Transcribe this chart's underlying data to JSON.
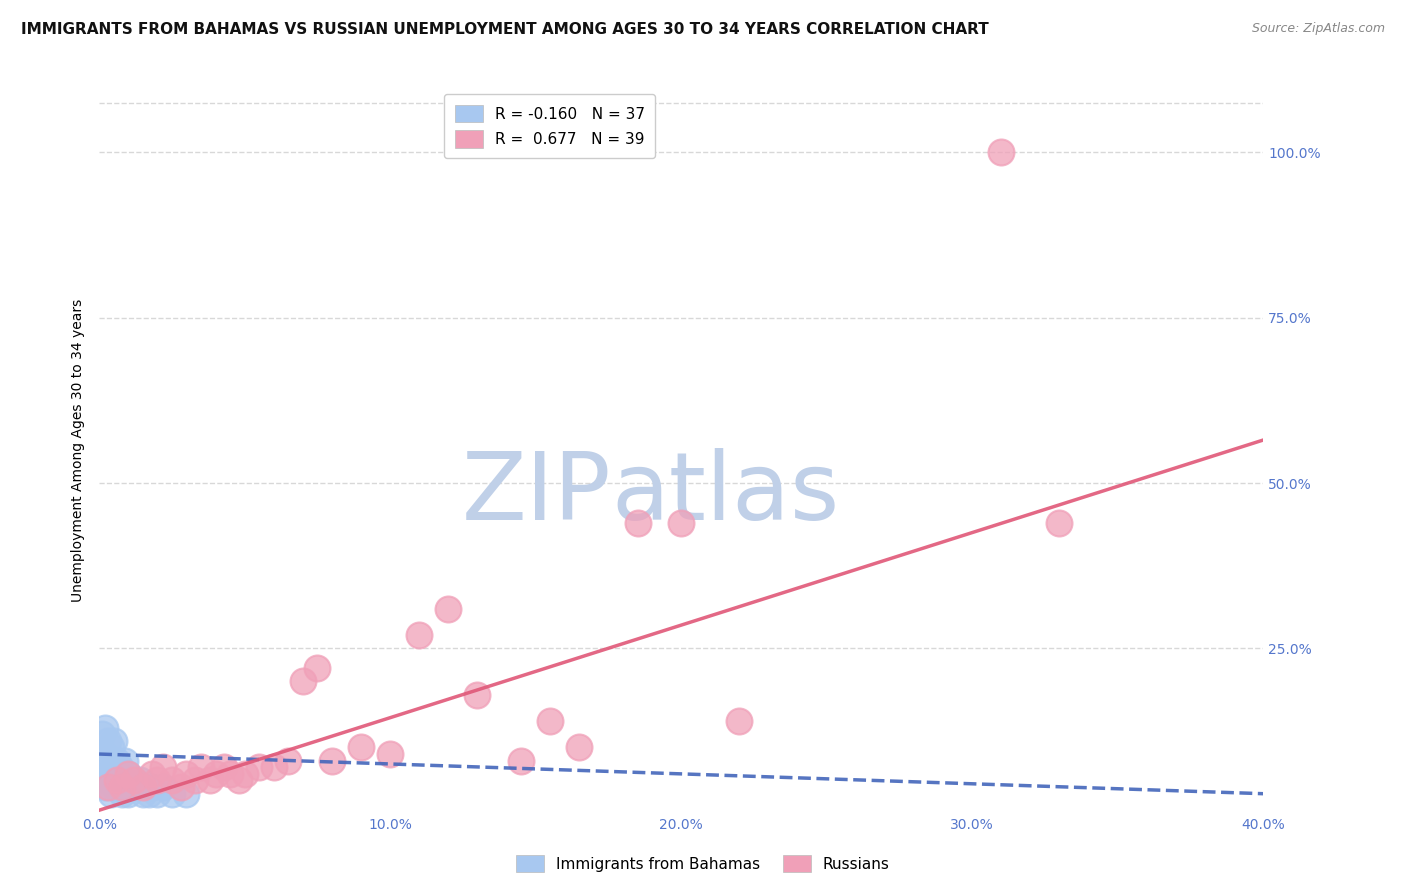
{
  "title": "IMMIGRANTS FROM BAHAMAS VS RUSSIAN UNEMPLOYMENT AMONG AGES 30 TO 34 YEARS CORRELATION CHART",
  "source": "Source: ZipAtlas.com",
  "ylabel": "Unemployment Among Ages 30 to 34 years",
  "xlim": [
    0.0,
    0.4
  ],
  "ylim": [
    0.0,
    1.1
  ],
  "xticks": [
    0.0,
    0.1,
    0.2,
    0.3,
    0.4
  ],
  "xticklabels": [
    "0.0%",
    "10.0%",
    "20.0%",
    "30.0%",
    "40.0%"
  ],
  "yticks_right": [
    0.25,
    0.5,
    0.75,
    1.0
  ],
  "yticklabels_right": [
    "25.0%",
    "50.0%",
    "75.0%",
    "100.0%"
  ],
  "grid_color": "#d8d8d8",
  "background_color": "#ffffff",
  "legend_label_blue": "Immigrants from Bahamas",
  "legend_label_pink": "Russians",
  "blue_R": -0.16,
  "blue_N": 37,
  "pink_R": 0.677,
  "pink_N": 39,
  "blue_color": "#a8c8f0",
  "pink_color": "#f0a0b8",
  "blue_line_color": "#4466bb",
  "pink_line_color": "#e05878",
  "blue_scatter_x": [
    0.001,
    0.001,
    0.001,
    0.002,
    0.002,
    0.002,
    0.003,
    0.003,
    0.003,
    0.004,
    0.004,
    0.004,
    0.005,
    0.005,
    0.005,
    0.006,
    0.006,
    0.007,
    0.007,
    0.008,
    0.008,
    0.009,
    0.009,
    0.01,
    0.01,
    0.011,
    0.012,
    0.013,
    0.014,
    0.015,
    0.016,
    0.017,
    0.018,
    0.02,
    0.022,
    0.025,
    0.03
  ],
  "blue_scatter_y": [
    0.05,
    0.08,
    0.12,
    0.04,
    0.09,
    0.13,
    0.05,
    0.07,
    0.11,
    0.03,
    0.06,
    0.1,
    0.04,
    0.07,
    0.11,
    0.05,
    0.08,
    0.04,
    0.07,
    0.03,
    0.06,
    0.04,
    0.08,
    0.03,
    0.06,
    0.04,
    0.05,
    0.04,
    0.05,
    0.03,
    0.04,
    0.03,
    0.04,
    0.03,
    0.04,
    0.03,
    0.03
  ],
  "pink_scatter_x": [
    0.003,
    0.006,
    0.008,
    0.01,
    0.012,
    0.015,
    0.018,
    0.02,
    0.022,
    0.025,
    0.028,
    0.03,
    0.033,
    0.035,
    0.038,
    0.04,
    0.043,
    0.045,
    0.048,
    0.05,
    0.055,
    0.06,
    0.065,
    0.07,
    0.075,
    0.08,
    0.09,
    0.1,
    0.11,
    0.12,
    0.13,
    0.145,
    0.155,
    0.165,
    0.185,
    0.2,
    0.22,
    0.31,
    0.33
  ],
  "pink_scatter_y": [
    0.04,
    0.05,
    0.04,
    0.06,
    0.05,
    0.04,
    0.06,
    0.05,
    0.07,
    0.05,
    0.04,
    0.06,
    0.05,
    0.07,
    0.05,
    0.06,
    0.07,
    0.06,
    0.05,
    0.06,
    0.07,
    0.07,
    0.08,
    0.2,
    0.22,
    0.08,
    0.1,
    0.09,
    0.27,
    0.31,
    0.18,
    0.08,
    0.14,
    0.1,
    0.44,
    0.44,
    0.14,
    1.0,
    0.44
  ],
  "blue_trend_x": [
    0.0,
    0.4
  ],
  "blue_trend_y": [
    0.09,
    0.03
  ],
  "pink_trend_x": [
    0.0,
    0.4
  ],
  "pink_trend_y": [
    0.005,
    0.565
  ],
  "watermark_zip": "ZIP",
  "watermark_atlas": "atlas",
  "watermark_zip_color": "#c0d0e8",
  "watermark_atlas_color": "#c0d0e8",
  "title_fontsize": 11,
  "source_fontsize": 9,
  "axis_label_fontsize": 10,
  "tick_fontsize": 10,
  "legend_fontsize": 11,
  "right_tick_color": "#5577cc",
  "bottom_tick_color": "#5577cc"
}
